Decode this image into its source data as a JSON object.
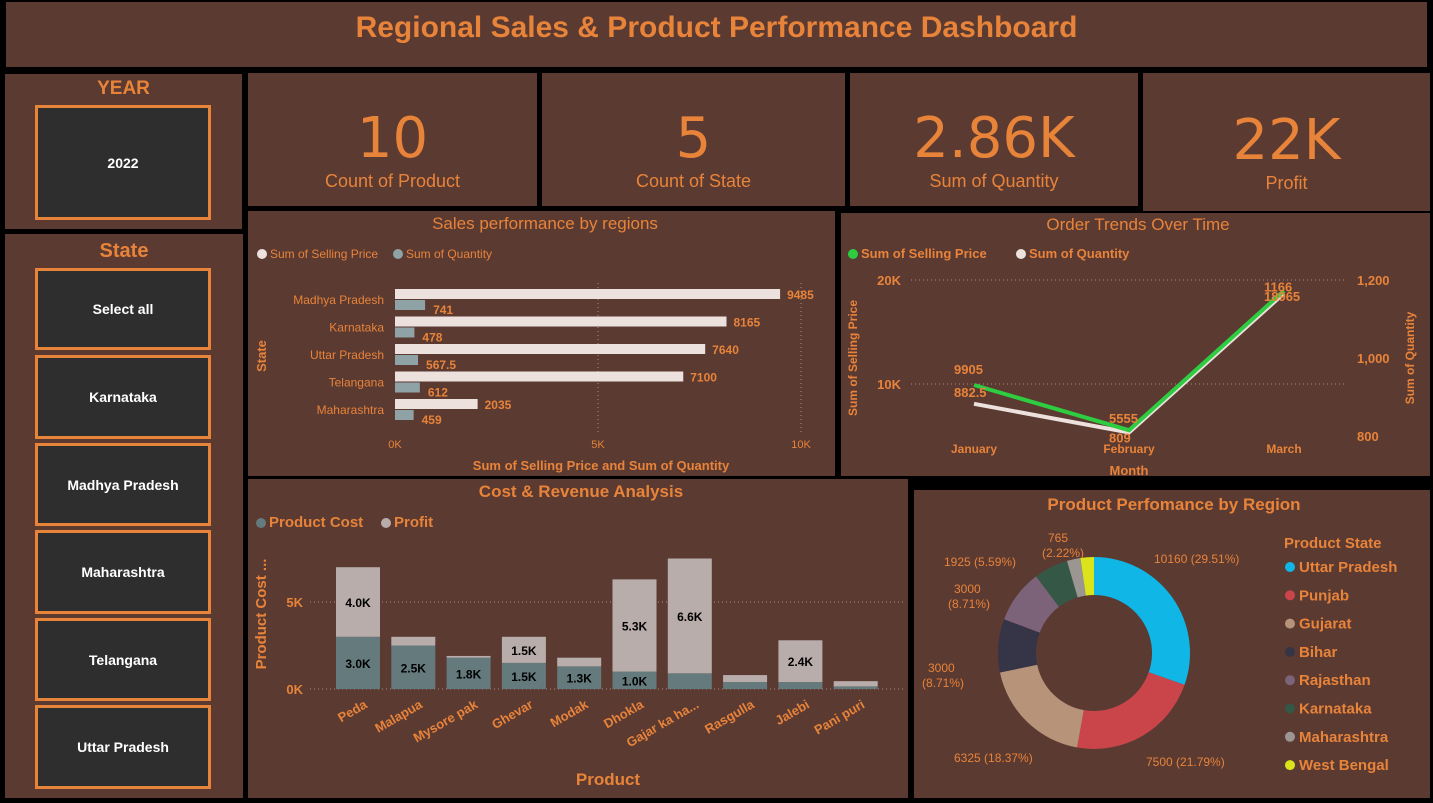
{
  "title": "Regional Sales & Product Performance Dashboard",
  "year_slicer": {
    "title": "YEAR",
    "selected": "2022"
  },
  "state_slicer": {
    "title": "State",
    "items": [
      "Select all",
      "Karnataka",
      "Madhya Pradesh",
      "Maharashtra",
      "Telangana",
      "Uttar Pradesh"
    ]
  },
  "kpis": [
    {
      "value": "10",
      "label": "Count of Product"
    },
    {
      "value": "5",
      "label": "Count of State"
    },
    {
      "value": "2.86K",
      "label": "Sum of Quantity"
    },
    {
      "value": "22K",
      "label": "Profit"
    }
  ],
  "colors": {
    "panel": "#5b3a32",
    "accent": "#e8833a",
    "slicer_bg": "#2e2e2e",
    "selling_price": "#ece1dc",
    "quantity": "#8fa3a6",
    "line_selling_price": "#2ecc40",
    "product_cost": "#657a7d",
    "profit": "#b8adab"
  },
  "chart_data": [
    {
      "id": "sales-by-region",
      "type": "bar",
      "title": "Sales performance by regions",
      "legend": [
        "Sum of Selling Price",
        "Sum of Quantity"
      ],
      "ylabel": "State",
      "xlabel": "Sum of Selling Price and Sum of Quantity",
      "categories": [
        "Madhya Pradesh",
        "Karnataka",
        "Uttar Pradesh",
        "Telangana",
        "Maharashtra"
      ],
      "series": [
        {
          "name": "Sum of Selling Price",
          "values": [
            9485,
            8165,
            7640,
            7100,
            2035
          ],
          "labels": [
            "9485",
            "8165",
            "7640",
            "7100",
            "2035"
          ]
        },
        {
          "name": "Sum of Quantity",
          "values": [
            741,
            478,
            567.5,
            612,
            459
          ],
          "labels": [
            "741",
            "478",
            "567.5",
            "612",
            "459"
          ]
        }
      ],
      "ticks": [
        "0K",
        "5K",
        "10K"
      ],
      "xlim": [
        0,
        10000
      ]
    },
    {
      "id": "order-trends",
      "type": "line",
      "title": "Order Trends Over Time",
      "legend": [
        "Sum of Selling Price",
        "Sum of Quantity"
      ],
      "xlabel": "Month",
      "ylabel": "Sum of Selling Price",
      "ylabel_right": "Sum of Quantity",
      "categories": [
        "January",
        "February",
        "March"
      ],
      "left_ticks": [
        "10K",
        "20K"
      ],
      "right_ticks": [
        "800",
        "1,000",
        "1,200"
      ],
      "ylim_left": [
        5000,
        20000
      ],
      "ylim_right": [
        800,
        1200
      ],
      "series": [
        {
          "name": "Sum of Selling Price",
          "values": [
            9905,
            5555,
            18965
          ],
          "labels": [
            "9905",
            "5555",
            "18965"
          ]
        },
        {
          "name": "Sum of Quantity",
          "values": [
            882.5,
            809,
            1166
          ],
          "labels": [
            "882.5",
            "809",
            "1166"
          ]
        }
      ]
    },
    {
      "id": "cost-revenue",
      "type": "bar",
      "title": "Cost & Revenue Analysis",
      "legend": [
        "Product Cost",
        "Profit"
      ],
      "xlabel": "Product",
      "ylabel": "Product Cost ...",
      "categories": [
        "Peda",
        "Malapua",
        "Mysore pak",
        "Ghevar",
        "Modak",
        "Dhokla",
        "Gajar ka ha...",
        "Rasgulla",
        "Jalebi",
        "Pani puri"
      ],
      "series": [
        {
          "name": "Product Cost",
          "values": [
            3000,
            2500,
            1800,
            1500,
            1300,
            1000,
            900,
            400,
            400,
            150
          ],
          "labels": [
            "3.0K",
            "2.5K",
            "1.8K",
            "1.5K",
            "1.3K",
            "1.0K",
            "",
            "",
            "",
            ""
          ]
        },
        {
          "name": "Profit",
          "values": [
            4000,
            500,
            100,
            1500,
            500,
            5300,
            6600,
            400,
            2400,
            300
          ],
          "labels": [
            "4.0K",
            "",
            "",
            "1.5K",
            "",
            "5.3K",
            "6.6K",
            "",
            "2.4K",
            ""
          ]
        }
      ],
      "ticks": [
        "0K",
        "5K"
      ],
      "ylim": [
        0,
        8000
      ]
    },
    {
      "id": "product-by-region",
      "type": "pie",
      "title": "Product Perfomance by Region",
      "legend_title": "Product State",
      "slices": [
        {
          "name": "Uttar Pradesh",
          "value": 10160,
          "label": "10160 (29.51%)",
          "color": "#10b6e6"
        },
        {
          "name": "Punjab",
          "value": 7500,
          "label": "7500 (21.79%)",
          "color": "#c9454a"
        },
        {
          "name": "Gujarat",
          "value": 6325,
          "label": "6325 (18.37%)",
          "color": "#b79479"
        },
        {
          "name": "Bihar",
          "value": 3000,
          "label": "3000 (8.71%)",
          "color": "#363447"
        },
        {
          "name": "Rajasthan",
          "value": 3000,
          "label": "3000 (8.71%)",
          "color": "#7d6379"
        },
        {
          "name": "Karnataka",
          "value": 1925,
          "label": "1925 (5.59%)",
          "color": "#345845"
        },
        {
          "name": "Maharashtra",
          "value": 765,
          "label": "765 (2.22%)",
          "color": "#9c9693"
        },
        {
          "name": "West Bengal",
          "value": 755,
          "label": "",
          "color": "#dbe41a"
        }
      ]
    }
  ]
}
